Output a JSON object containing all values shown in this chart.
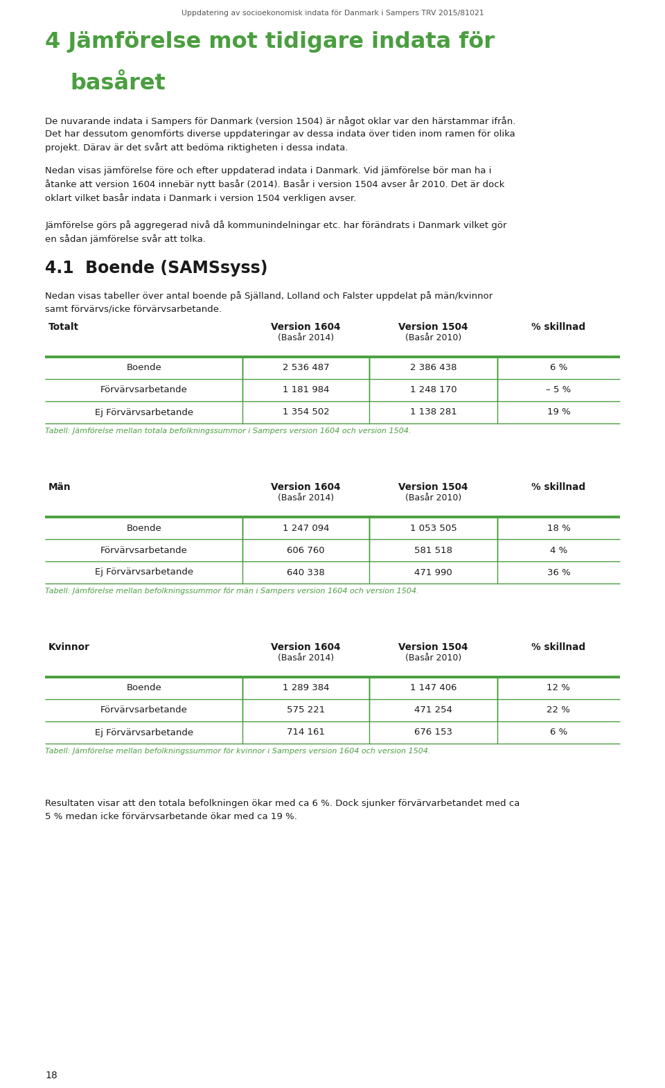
{
  "page_header": "Uppdatering av socioekonomisk indata för Danmark i Sampers TRV 2015/81021",
  "chapter_title_line1": "4 Jämförelse mot tidigare indata för",
  "chapter_title_line2": "basåret",
  "chapter_title_color": "#3a8a2e",
  "body_text_1": "De nuvarande indata i Sampers för Danmark (version 1504) är något oklar var den härstammar ifrån.\nDet har dessutom genomförts diverse uppdateringar av dessa indata över tiden inom ramen för olika\nprojekt. Därav är det svårt att bedöma riktigheten i dessa indata.",
  "body_text_2": "Nedan visas jämförelse före och efter uppdaterad indata i Danmark. Vid jämförelse bör man ha i\nåtanke att version 1604 innebär nytt basår (2014). Basår i version 1504 avser år 2010. Det är dock\noklart vilket basår indata i Danmark i version 1504 verkligen avser.",
  "body_text_3": "Jämförelse görs på aggregerad nivå då kommunindelningar etc. har förändrats i Danmark vilket gör\nen sådan jämförelse svår att tolka.",
  "section_title": "4.1  Boende (SAMSsyss)",
  "section_body": "Nedan visas tabeller över antal boende på Själland, Lolland och Falster uppdelat på män/kvinnor\nsamt förvärvs/icke förvärvsarbetande.",
  "table1_col0": "Totalt",
  "table1_rows": [
    [
      "Boende",
      "2 536 487",
      "2 386 438",
      "6 %"
    ],
    [
      "Förvärvsarbetande",
      "1 181 984",
      "1 248 170",
      "– 5 %"
    ],
    [
      "Ej Förvärvsarbetande",
      "1 354 502",
      "1 138 281",
      "19 %"
    ]
  ],
  "table1_caption": "Tabell: Jämförelse mellan totala befolkningssummor i Sampers version 1604 och version 1504.",
  "table2_col0": "Män",
  "table2_rows": [
    [
      "Boende",
      "1 247 094",
      "1 053 505",
      "18 %"
    ],
    [
      "Förvärvsarbetande",
      "606 760",
      "581 518",
      "4 %"
    ],
    [
      "Ej Förvärvsarbetande",
      "640 338",
      "471 990",
      "36 %"
    ]
  ],
  "table2_caption": "Tabell: Jämförelse mellan befolkningssummor för män i Sampers version 1604 och version 1504.",
  "table3_col0": "Kvinnor",
  "table3_rows": [
    [
      "Boende",
      "1 289 384",
      "1 147 406",
      "12 %"
    ],
    [
      "Förvärvsarbetande",
      "575 221",
      "471 254",
      "22 %"
    ],
    [
      "Ej Förvärvsarbetande",
      "714 161",
      "676 153",
      "6 %"
    ]
  ],
  "table3_caption": "Tabell: Jämförelse mellan befolkningssummor för kvinnor i Sampers version 1604 och version 1504.",
  "footer_text": "Resultaten visar att den totala befolkningen ökar med ca 6 %. Dock sjunker förvärvarbetandet med ca\n5 % medan icke förvärvsarbetande ökar med ca 19 %.",
  "page_number": "18",
  "green_color": "#4a9e3f",
  "caption_color": "#4a9e3f",
  "border_color": "#4a9e3f",
  "bg_color": "#ffffff",
  "text_color": "#1a1a1a",
  "header_color": "#555555",
  "ml": 0.068,
  "mr": 0.932
}
